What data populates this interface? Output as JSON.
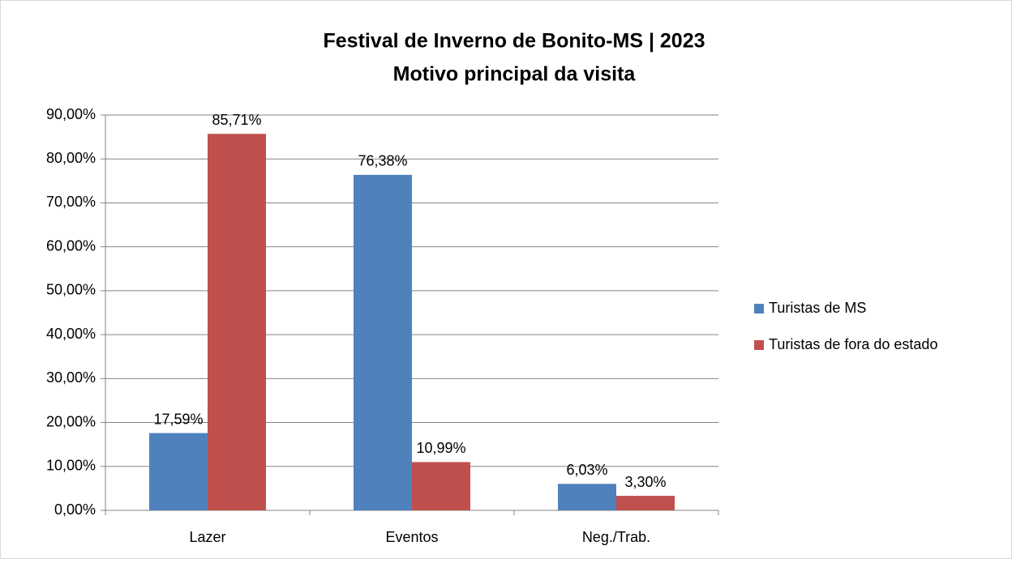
{
  "chart_data": {
    "type": "bar",
    "title": "Festival de Inverno de Bonito-MS | 2023",
    "subtitle": "Motivo principal da visita",
    "categories": [
      "Lazer",
      "Eventos",
      "Neg./Trab."
    ],
    "series": [
      {
        "name": "Turistas de MS",
        "color": "#4f81bd",
        "values": [
          17.59,
          76.38,
          6.03
        ],
        "value_labels": [
          "17,59%",
          "76,38%",
          "6,03%"
        ]
      },
      {
        "name": "Turistas de fora do estado",
        "color": "#c0504d",
        "values": [
          85.71,
          10.99,
          3.3
        ],
        "value_labels": [
          "85,71%",
          "10,99%",
          "3,30%"
        ]
      }
    ],
    "ylim": [
      0,
      90
    ],
    "yticks": [
      {
        "value": 0,
        "label": "0,00%"
      },
      {
        "value": 10,
        "label": "10,00%"
      },
      {
        "value": 20,
        "label": "20,00%"
      },
      {
        "value": 30,
        "label": "30,00%"
      },
      {
        "value": 40,
        "label": "40,00%"
      },
      {
        "value": 50,
        "label": "50,00%"
      },
      {
        "value": 60,
        "label": "60,00%"
      },
      {
        "value": 70,
        "label": "70,00%"
      },
      {
        "value": 80,
        "label": "80,00%"
      },
      {
        "value": 90,
        "label": "90,00%"
      }
    ],
    "grid": true,
    "legend": "right"
  }
}
